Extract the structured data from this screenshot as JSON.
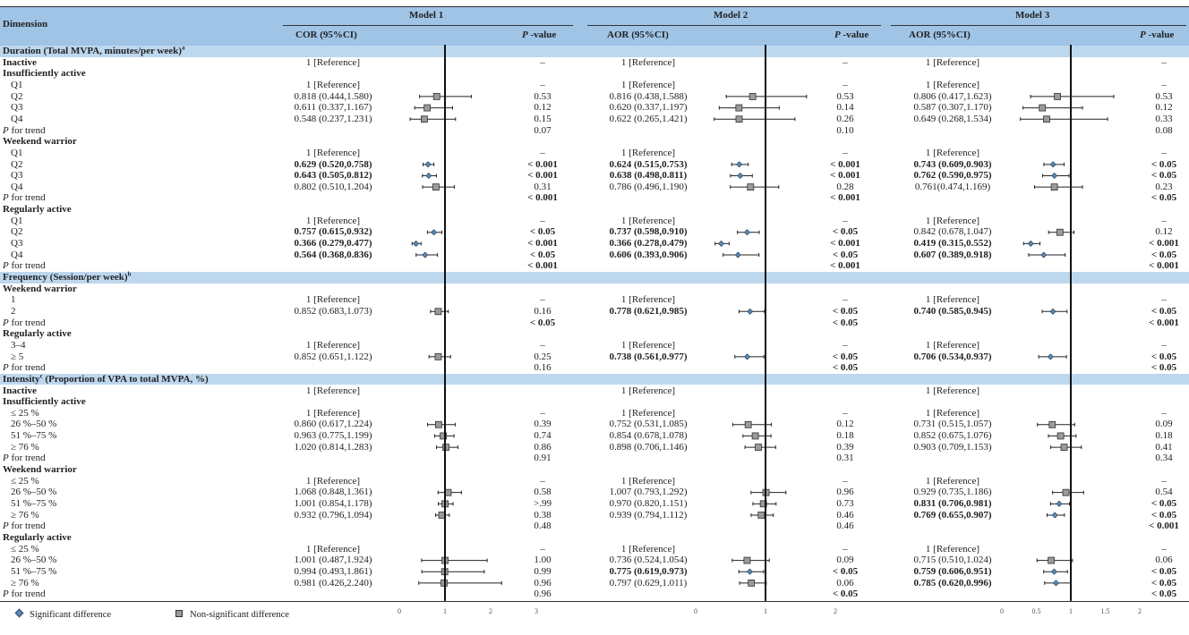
{
  "chart_data": {
    "type": "table",
    "header": {
      "dimension": "Dimension",
      "models": [
        {
          "title": "Model 1",
          "ci_label": "COR (95%CI)",
          "p_sym": "P",
          "p_label": " -value",
          "ticks": [
            0,
            1,
            2,
            3
          ],
          "reference_line": 1
        },
        {
          "title": "Model 2",
          "ci_label": "AOR (95%CI)",
          "p_sym": "P",
          "p_label": " -value",
          "ticks": [
            0,
            1,
            2
          ],
          "reference_line": 1
        },
        {
          "title": "Model 3",
          "ci_label": "AOR (95%CI)",
          "p_sym": "P",
          "p_label": " -value",
          "ticks": [
            0,
            0.5,
            1,
            1.5,
            2
          ],
          "reference_line": 1
        }
      ]
    },
    "trend_label": {
      "sym": "P",
      "text": " for trend"
    },
    "legend": {
      "significant": "Significant difference",
      "non_significant": "Non-significant difference"
    },
    "colors": {
      "header": "#9fc4e6",
      "section": "#bdd7ee",
      "significant": "#5b8bb5",
      "non_significant": "#9a9a9a"
    },
    "rows": [
      {
        "type": "section",
        "label": "Duration (Total MVPA, minutes/per week)",
        "sup": "a",
        "rest": ""
      },
      {
        "type": "group",
        "label": "Inactive",
        "cells": [
          [
            "1 [Reference]",
            "–"
          ],
          [
            "1 [Reference]",
            "–"
          ],
          [
            "1 [Reference]",
            "–"
          ]
        ]
      },
      {
        "type": "group",
        "label": "Insufficiently active"
      },
      {
        "type": "item",
        "label": "Q1",
        "cells": [
          [
            "1 [Reference]",
            "–"
          ],
          [
            "1 [Reference]",
            "–"
          ],
          [
            "1 [Reference]",
            "–"
          ]
        ]
      },
      {
        "type": "item",
        "label": "Q2",
        "cells": [
          [
            "0.818 (0.444,1.580)",
            "0.53"
          ],
          [
            "0.816 (0.438,1.588)",
            "0.53"
          ],
          [
            "0.806 (0.417,1.623)",
            "0.53"
          ]
        ]
      },
      {
        "type": "item",
        "label": "Q3",
        "cells": [
          [
            "0.611 (0.337,1.167)",
            "0.12"
          ],
          [
            "0.620 (0.337,1.197)",
            "0.14"
          ],
          [
            "0.587 (0.307,1.170)",
            "0.12"
          ]
        ]
      },
      {
        "type": "item",
        "label": "Q4",
        "cells": [
          [
            "0.548 (0.237,1.231)",
            "0.15"
          ],
          [
            "0.622 (0.265,1.421)",
            "0.26"
          ],
          [
            "0.649 (0.268,1.534)",
            "0.33"
          ]
        ]
      },
      {
        "type": "trend",
        "cells": [
          [
            "",
            "0.07"
          ],
          [
            "",
            "0.10"
          ],
          [
            "",
            "0.08"
          ]
        ]
      },
      {
        "type": "group",
        "label": "Weekend warrior"
      },
      {
        "type": "item",
        "label": "Q1",
        "cells": [
          [
            "1 [Reference]",
            "–"
          ],
          [
            "1 [Reference]",
            "–"
          ],
          [
            "1 [Reference]",
            "–"
          ]
        ]
      },
      {
        "type": "item",
        "label": "Q2",
        "cells": [
          [
            "0.629 (0.520,0.758)",
            "< 0.001"
          ],
          [
            "0.624 (0.515,0.753)",
            "< 0.001"
          ],
          [
            "0.743 (0.609,0.903)",
            "< 0.05"
          ]
        ]
      },
      {
        "type": "item",
        "label": "Q3",
        "cells": [
          [
            "0.643 (0.505,0.812)",
            "< 0.001"
          ],
          [
            "0.638 (0.498,0.811)",
            "< 0.001"
          ],
          [
            "0.762 (0.590,0.975)",
            "< 0.05"
          ]
        ]
      },
      {
        "type": "item",
        "label": "Q4",
        "cells": [
          [
            "0.802 (0.510,1.204)",
            "0.31"
          ],
          [
            "0.786 (0.496,1.190)",
            "0.28"
          ],
          [
            "0.761(0.474,1.169)",
            "0.23"
          ]
        ]
      },
      {
        "type": "trend",
        "cells": [
          [
            "",
            "< 0.001"
          ],
          [
            "",
            "< 0.001"
          ],
          [
            "",
            "< 0.05"
          ]
        ]
      },
      {
        "type": "group",
        "label": "Regularly active"
      },
      {
        "type": "item",
        "label": "Q1",
        "cells": [
          [
            "1 [Reference]",
            "–"
          ],
          [
            "1 [Reference]",
            "–"
          ],
          [
            "1 [Reference]",
            "–"
          ]
        ]
      },
      {
        "type": "item",
        "label": "Q2",
        "cells": [
          [
            "0.757 (0.615,0.932)",
            "< 0.05"
          ],
          [
            "0.737 (0.598,0.910)",
            "< 0.05"
          ],
          [
            "0.842 (0.678,1.047)",
            "0.12"
          ]
        ]
      },
      {
        "type": "item",
        "label": "Q3",
        "cells": [
          [
            "0.366 (0.279,0.477)",
            "< 0.001"
          ],
          [
            "0.366 (0.278,0.479)",
            "< 0.001"
          ],
          [
            "0.419 (0.315,0.552)",
            "< 0.001"
          ]
        ]
      },
      {
        "type": "item",
        "label": "Q4",
        "cells": [
          [
            "0.564 (0.368,0.836)",
            "< 0.05"
          ],
          [
            "0.606 (0.393,0.906)",
            "< 0.05"
          ],
          [
            "0.607 (0.389,0.918)",
            "< 0.05"
          ]
        ]
      },
      {
        "type": "trend",
        "cells": [
          [
            "",
            "< 0.001"
          ],
          [
            "",
            "< 0.001"
          ],
          [
            "",
            "< 0.001"
          ]
        ]
      },
      {
        "type": "section",
        "label": "Frequency (Session/per week)",
        "sup": "b",
        "rest": ""
      },
      {
        "type": "group",
        "label": "Weekend warrior"
      },
      {
        "type": "item",
        "label": "1",
        "cells": [
          [
            "1 [Reference]",
            "–"
          ],
          [
            "1 [Reference]",
            "–"
          ],
          [
            "1 [Reference]",
            "–"
          ]
        ]
      },
      {
        "type": "item",
        "label": "2",
        "cells": [
          [
            "0.852 (0.683,1.073)",
            "0.16"
          ],
          [
            "0.778 (0.621,0.985)",
            "< 0.05"
          ],
          [
            "0.740 (0.585,0.945)",
            "< 0.05"
          ]
        ]
      },
      {
        "type": "trend",
        "cells": [
          [
            "",
            "< 0.05"
          ],
          [
            "",
            "< 0.05"
          ],
          [
            "",
            "< 0.001"
          ]
        ]
      },
      {
        "type": "group",
        "label": "Regularly active"
      },
      {
        "type": "item",
        "label": "3–4",
        "cells": [
          [
            "1 [Reference]",
            "–"
          ],
          [
            "1 [Reference]",
            "–"
          ],
          [
            "1 [Reference]",
            "–"
          ]
        ]
      },
      {
        "type": "item",
        "label": "≥ 5",
        "cells": [
          [
            "0.852 (0.651,1.122)",
            "0.25"
          ],
          [
            "0.738 (0.561,0.977)",
            "< 0.05"
          ],
          [
            "0.706 (0.534,0.937)",
            "< 0.05"
          ]
        ]
      },
      {
        "type": "trend",
        "cells": [
          [
            "",
            "0.16"
          ],
          [
            "",
            "< 0.05"
          ],
          [
            "",
            "< 0.05"
          ]
        ]
      },
      {
        "type": "section",
        "label": "Intensity",
        "sup": "c",
        "rest": " (Proportion of VPA to total MVPA, %)"
      },
      {
        "type": "group",
        "label": "Inactive",
        "cells": [
          [
            "1 [Reference]",
            ""
          ],
          [
            "1 [Reference]",
            ""
          ],
          [
            "1 [Reference]",
            ""
          ]
        ]
      },
      {
        "type": "group",
        "label": "Insufficiently active"
      },
      {
        "type": "item",
        "label": "≤ 25 %",
        "cells": [
          [
            "1 [Reference]",
            "–"
          ],
          [
            "1 [Reference]",
            "–"
          ],
          [
            "1 [Reference]",
            "–"
          ]
        ]
      },
      {
        "type": "item",
        "label": "26 %–50 %",
        "cells": [
          [
            "0.860 (0.617,1.224)",
            "0.39"
          ],
          [
            "0.752 (0.531,1.085)",
            "0.12"
          ],
          [
            "0.731 (0.515,1.057)",
            "0.09"
          ]
        ]
      },
      {
        "type": "item",
        "label": "51 %–75 %",
        "cells": [
          [
            "0.963 (0.775,1.199)",
            "0.74"
          ],
          [
            "0.854 (0.678,1.078)",
            "0.18"
          ],
          [
            "0.852 (0.675,1.076)",
            "0.18"
          ]
        ]
      },
      {
        "type": "item",
        "label": "≥ 76 %",
        "cells": [
          [
            "1.020 (0.814,1.283)",
            "0.86"
          ],
          [
            "0.898 (0.706,1.146)",
            "0.39"
          ],
          [
            "0.903 (0.709,1.153)",
            "0.41"
          ]
        ]
      },
      {
        "type": "trend",
        "cells": [
          [
            "",
            "0.91"
          ],
          [
            "",
            "0.31"
          ],
          [
            "",
            "0.34"
          ]
        ]
      },
      {
        "type": "group",
        "label": "Weekend warrior"
      },
      {
        "type": "item",
        "label": "≤ 25 %",
        "cells": [
          [
            "1 [Reference]",
            "–"
          ],
          [
            "1 [Reference]",
            "–"
          ],
          [
            "1 [Reference]",
            "–"
          ]
        ]
      },
      {
        "type": "item",
        "label": "26 %–50 %",
        "cells": [
          [
            "1.068 (0.848,1.361)",
            "0.58"
          ],
          [
            "1.007 (0.793,1.292)",
            "0.96"
          ],
          [
            "0.929 (0.735,1.186)",
            "0.54"
          ]
        ]
      },
      {
        "type": "item",
        "label": "51 %–75 %",
        "cells": [
          [
            "1.001 (0.854,1.178)",
            ">.99"
          ],
          [
            "0.970 (0.820,1.151)",
            "0.73"
          ],
          [
            "0.831 (0.706,0.981)",
            "< 0.05"
          ]
        ]
      },
      {
        "type": "item",
        "label": "≥ 76 %",
        "cells": [
          [
            "0.932 (0.796,1.094)",
            "0.38"
          ],
          [
            "0.939 (0.794,1.112)",
            "0.46"
          ],
          [
            "0.769 (0.655,0.907)",
            "< 0.05"
          ]
        ]
      },
      {
        "type": "trend",
        "cells": [
          [
            "",
            "0.48"
          ],
          [
            "",
            "0.46"
          ],
          [
            "",
            "< 0.001"
          ]
        ]
      },
      {
        "type": "group",
        "label": "Regularly active"
      },
      {
        "type": "item",
        "label": "≤ 25 %",
        "cells": [
          [
            "1 [Reference]",
            "–"
          ],
          [
            "1 [Reference]",
            "–"
          ],
          [
            "1 [Reference]",
            "–"
          ]
        ]
      },
      {
        "type": "item",
        "label": "26 %–50 %",
        "cells": [
          [
            "1.001 (0.487,1.924)",
            "1.00"
          ],
          [
            "0.736 (0.524,1.054)",
            "0.09"
          ],
          [
            "0.715 (0.510,1.024)",
            "0.06"
          ]
        ]
      },
      {
        "type": "item",
        "label": "51 %–75 %",
        "cells": [
          [
            "0.994 (0.493,1.861)",
            "0.99"
          ],
          [
            "0.775 (0.619,0.973)",
            "< 0.05"
          ],
          [
            "0.759 (0.606,0.951)",
            "< 0.05"
          ]
        ]
      },
      {
        "type": "item",
        "label": "≥ 76 %",
        "cells": [
          [
            "0.981 (0.426,2.240)",
            "0.96"
          ],
          [
            "0.797 (0.629,1.011)",
            "0.06"
          ],
          [
            "0.785 (0.620,0.996)",
            "< 0.05"
          ]
        ]
      },
      {
        "type": "trend",
        "cells": [
          [
            "",
            "0.96"
          ],
          [
            "",
            "< 0.05"
          ],
          [
            "",
            "< 0.05"
          ]
        ]
      }
    ]
  }
}
